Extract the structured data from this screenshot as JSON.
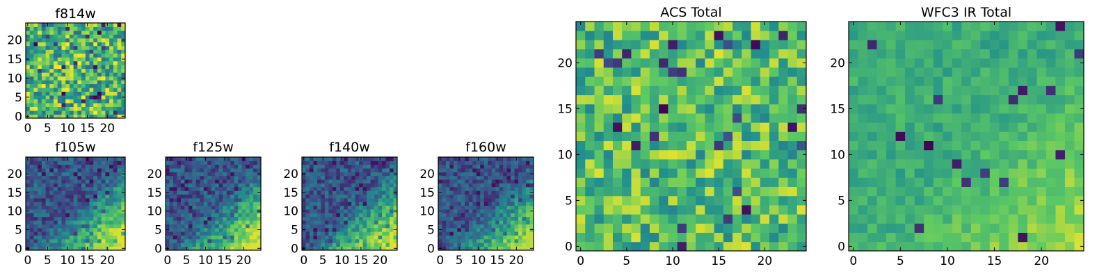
{
  "colormap": [
    "#440154",
    "#3b528b",
    "#21908d",
    "#5dc963",
    "#fde725"
  ],
  "chart_data": [
    {
      "type": "heatmap",
      "title": "f814w",
      "grid_size": 25,
      "xticks": [
        0,
        5,
        10,
        15,
        20
      ],
      "yticks": [
        0,
        5,
        10,
        15,
        20
      ],
      "xlim": [
        -0.5,
        24.5
      ],
      "ylim": [
        -0.5,
        24.5
      ],
      "pattern": "noise",
      "value_range": [
        0.35,
        1.0
      ],
      "low_fraction": 0.04
    },
    {
      "type": "heatmap",
      "title": "f105w",
      "grid_size": 25,
      "xticks": [
        0,
        5,
        10,
        15,
        20
      ],
      "yticks": [
        0,
        5,
        10,
        15,
        20
      ],
      "xlim": [
        -0.5,
        24.5
      ],
      "ylim": [
        -0.5,
        24.5
      ],
      "pattern": "diagonal-gradient",
      "value_range": [
        0.05,
        0.95
      ]
    },
    {
      "type": "heatmap",
      "title": "f125w",
      "grid_size": 25,
      "xticks": [
        0,
        5,
        10,
        15,
        20
      ],
      "yticks": [
        0,
        5,
        10,
        15,
        20
      ],
      "xlim": [
        -0.5,
        24.5
      ],
      "ylim": [
        -0.5,
        24.5
      ],
      "pattern": "diagonal-gradient",
      "value_range": [
        0.05,
        0.95
      ]
    },
    {
      "type": "heatmap",
      "title": "f140w",
      "grid_size": 25,
      "xticks": [
        0,
        5,
        10,
        15,
        20
      ],
      "yticks": [
        0,
        5,
        10,
        15,
        20
      ],
      "xlim": [
        -0.5,
        24.5
      ],
      "ylim": [
        -0.5,
        24.5
      ],
      "pattern": "diagonal-gradient",
      "value_range": [
        0.05,
        0.95
      ]
    },
    {
      "type": "heatmap",
      "title": "f160w",
      "grid_size": 25,
      "xticks": [
        0,
        5,
        10,
        15,
        20
      ],
      "yticks": [
        0,
        5,
        10,
        15,
        20
      ],
      "xlim": [
        -0.5,
        24.5
      ],
      "ylim": [
        -0.5,
        24.5
      ],
      "pattern": "diagonal-gradient",
      "value_range": [
        0.05,
        0.9
      ]
    },
    {
      "type": "heatmap",
      "title": "ACS Total",
      "grid_size": 25,
      "xticks": [
        0,
        5,
        10,
        15,
        20
      ],
      "yticks": [
        0,
        5,
        10,
        15,
        20
      ],
      "xlim": [
        -0.5,
        24.5
      ],
      "ylim": [
        -0.5,
        24.5
      ],
      "pattern": "noise",
      "value_range": [
        0.45,
        0.95
      ],
      "low_fraction": 0.05
    },
    {
      "type": "heatmap",
      "title": "WFC3 IR Total",
      "grid_size": 25,
      "xticks": [
        0,
        5,
        10,
        15,
        20
      ],
      "yticks": [
        0,
        5,
        10,
        15,
        20
      ],
      "xlim": [
        -0.5,
        24.5
      ],
      "ylim": [
        -0.5,
        24.5
      ],
      "pattern": "soft-gradient",
      "value_range": [
        0.35,
        0.95
      ],
      "low_fraction": 0.03
    }
  ]
}
